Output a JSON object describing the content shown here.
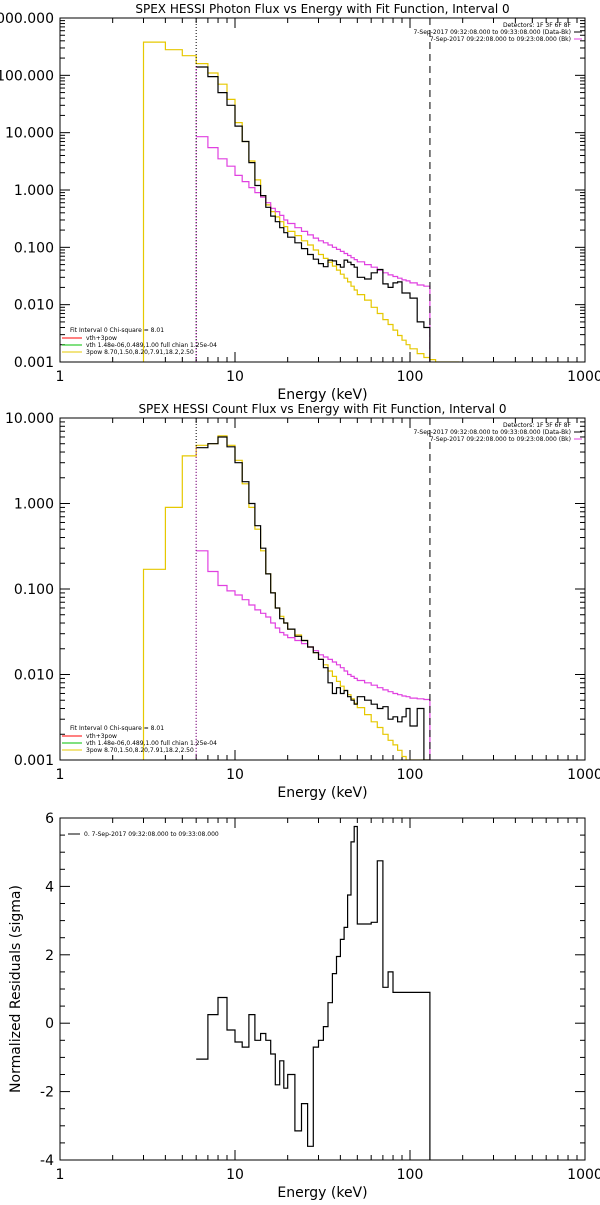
{
  "chart_data": [
    {
      "type": "line",
      "title": "SPEX HESSI Photon Flux vs Energy with Fit Function, Interval 0",
      "xlabel": "Energy (keV)",
      "ylabel": "",
      "xscale": "log",
      "yscale": "log",
      "xlim": [
        1,
        1000
      ],
      "ylim": [
        0.001,
        1000
      ],
      "x_ticks": [
        1,
        10,
        100,
        1000
      ],
      "x_tick_labels": [
        "1",
        "10",
        "100",
        "1000"
      ],
      "y_ticks": [
        0.001,
        0.01,
        0.1,
        1,
        10,
        100,
        1000
      ],
      "y_tick_labels": [
        "0.001",
        "0.010",
        "0.100",
        "1.000",
        "10.000",
        "100.000",
        "1000.000"
      ],
      "vlines": [
        {
          "x": 6,
          "style": "dotted"
        },
        {
          "x": 130,
          "style": "dashed"
        }
      ],
      "info_lines": [
        "Detectors: 1F 3F 6F 8F",
        "7-Sep-2017 09:32:08.000 to 09:33:08.000 (Data-Bk)",
        "7-Sep-2017 09:22:08.000 to 09:23:08.000 (Bk)"
      ],
      "legend_header": "Fit Interval 0   Chi-square = 8.01",
      "legend_entries": [
        {
          "label": "vth+3pow",
          "color": "#ff0000"
        },
        {
          "label": "vth 1.48e-06,0.489,1.00  full chian 1.25e-04",
          "color": "#00c000"
        },
        {
          "label": "3pow 8.70,1.50,8.20,7.91,18.2,2.50",
          "color": "#e6c800"
        }
      ],
      "series": [
        {
          "name": "Data-Bk",
          "color": "#000000",
          "style": "step",
          "edges": [
            6,
            7,
            8,
            9,
            10,
            11,
            12,
            13,
            14,
            15,
            16,
            17,
            18,
            19,
            20,
            22,
            24,
            26,
            28,
            30,
            32,
            34,
            36,
            38,
            40,
            42,
            44,
            46,
            48,
            50,
            55,
            60,
            65,
            70,
            75,
            80,
            85,
            90,
            95,
            100,
            110,
            120,
            130
          ],
          "values": [
            140,
            95,
            50,
            30,
            13,
            7,
            3,
            1.2,
            0.8,
            0.5,
            0.35,
            0.28,
            0.22,
            0.18,
            0.15,
            0.12,
            0.095,
            0.075,
            0.062,
            0.052,
            0.046,
            0.06,
            0.058,
            0.05,
            0.045,
            0.06,
            0.055,
            0.05,
            0.045,
            0.03,
            0.028,
            0.036,
            0.041,
            0.023,
            0.02,
            0.024,
            0.025,
            0.016,
            0.016,
            0.013,
            0.005,
            0.004
          ]
        },
        {
          "name": "Bk",
          "color": "#e040e0",
          "style": "step",
          "edges": [
            6,
            7,
            8,
            9,
            10,
            11,
            12,
            13,
            14,
            15,
            16,
            17,
            18,
            19,
            20,
            22,
            24,
            26,
            28,
            30,
            32,
            34,
            36,
            38,
            40,
            42,
            44,
            46,
            48,
            50,
            55,
            60,
            65,
            70,
            75,
            80,
            85,
            90,
            95,
            100,
            110,
            120,
            130
          ],
          "values": [
            8.5,
            5.5,
            3.5,
            2.6,
            1.8,
            1.4,
            1.1,
            0.9,
            0.75,
            0.6,
            0.48,
            0.42,
            0.36,
            0.3,
            0.26,
            0.22,
            0.19,
            0.165,
            0.145,
            0.13,
            0.12,
            0.11,
            0.1,
            0.092,
            0.085,
            0.078,
            0.072,
            0.066,
            0.061,
            0.056,
            0.05,
            0.045,
            0.04,
            0.036,
            0.033,
            0.031,
            0.029,
            0.027,
            0.026,
            0.024,
            0.022,
            0.021
          ]
        },
        {
          "name": "3pow",
          "color": "#e6c800",
          "style": "step",
          "edges": [
            3,
            4,
            5,
            6,
            7,
            8,
            9,
            10,
            11,
            12,
            13,
            14,
            15,
            16,
            17,
            18,
            19,
            20,
            22,
            24,
            26,
            28,
            30,
            32,
            34,
            36,
            38,
            40,
            42,
            44,
            46,
            48,
            50,
            55,
            60,
            65,
            70,
            75,
            80,
            85,
            90,
            95,
            100,
            110,
            120,
            130,
            140,
            150,
            160,
            170,
            180,
            190
          ],
          "values": [
            380,
            280,
            220,
            160,
            110,
            70,
            38,
            15,
            7,
            3.2,
            1.5,
            0.8,
            0.55,
            0.42,
            0.34,
            0.28,
            0.23,
            0.19,
            0.16,
            0.13,
            0.11,
            0.09,
            0.075,
            0.064,
            0.055,
            0.047,
            0.04,
            0.034,
            0.029,
            0.025,
            0.021,
            0.018,
            0.015,
            0.012,
            0.009,
            0.007,
            0.0055,
            0.0045,
            0.0036,
            0.0029,
            0.0024,
            0.002,
            0.0017,
            0.0014,
            0.0012,
            0.0011,
            0.001,
            0.001,
            0.001,
            0.001,
            0.001
          ],
          "drop_to_floor_at_start": true
        }
      ]
    },
    {
      "type": "line",
      "title": "SPEX HESSI Count Flux vs Energy with Fit Function, Interval 0",
      "xlabel": "Energy (keV)",
      "ylabel": "",
      "xscale": "log",
      "yscale": "log",
      "xlim": [
        1,
        1000
      ],
      "ylim": [
        0.001,
        10
      ],
      "x_ticks": [
        1,
        10,
        100,
        1000
      ],
      "x_tick_labels": [
        "1",
        "10",
        "100",
        "1000"
      ],
      "y_ticks": [
        0.001,
        0.01,
        0.1,
        1,
        10
      ],
      "y_tick_labels": [
        "0.001",
        "0.010",
        "0.100",
        "1.000",
        "10.000"
      ],
      "vlines": [
        {
          "x": 6,
          "style": "dotted"
        },
        {
          "x": 130,
          "style": "dashed"
        }
      ],
      "info_lines": [
        "Detectors: 1F 3F 6F 8F",
        "7-Sep-2017 09:32:08.000 to 09:33:08.000 (Data-Bk)",
        "7-Sep-2017 09:22:08.000 to 09:23:08.000 (Bk)"
      ],
      "legend_header": "Fit Interval 0   Chi-square = 8.01",
      "legend_entries": [
        {
          "label": "vth+3pow",
          "color": "#ff0000"
        },
        {
          "label": "vth 1.48e-06,0.489,1.00  full chian 1.25e-04",
          "color": "#00c000"
        },
        {
          "label": "3pow 8.70,1.50,8.20,7.91,18.2,2.50",
          "color": "#e6c800"
        }
      ],
      "series": [
        {
          "name": "Data-Bk",
          "color": "#000000",
          "style": "step",
          "edges": [
            6,
            7,
            8,
            9,
            10,
            11,
            12,
            13,
            14,
            15,
            16,
            17,
            18,
            19,
            20,
            22,
            24,
            26,
            28,
            30,
            32,
            34,
            36,
            38,
            40,
            42,
            44,
            46,
            48,
            50,
            55,
            60,
            65,
            70,
            75,
            80,
            85,
            90,
            95,
            100,
            110,
            120,
            130
          ],
          "values": [
            4.5,
            5,
            6,
            4.6,
            3,
            1.8,
            1,
            0.55,
            0.3,
            0.15,
            0.09,
            0.06,
            0.045,
            0.04,
            0.034,
            0.028,
            0.025,
            0.021,
            0.018,
            0.015,
            0.012,
            0.008,
            0.006,
            0.007,
            0.006,
            0.0065,
            0.0055,
            0.005,
            0.0045,
            0.0055,
            0.005,
            0.0045,
            0.004,
            0.0042,
            0.003,
            0.0032,
            0.0028,
            0.0032,
            0.004,
            0.0025,
            0.004,
            0.0007
          ]
        },
        {
          "name": "Bk",
          "color": "#e040e0",
          "style": "step",
          "edges": [
            6,
            7,
            8,
            9,
            10,
            11,
            12,
            13,
            14,
            15,
            16,
            17,
            18,
            19,
            20,
            22,
            24,
            26,
            28,
            30,
            32,
            34,
            36,
            38,
            40,
            42,
            44,
            46,
            48,
            50,
            55,
            60,
            65,
            70,
            75,
            80,
            85,
            90,
            95,
            100,
            110,
            120,
            130
          ],
          "values": [
            0.28,
            0.16,
            0.11,
            0.095,
            0.085,
            0.075,
            0.065,
            0.057,
            0.052,
            0.047,
            0.04,
            0.035,
            0.031,
            0.029,
            0.027,
            0.025,
            0.023,
            0.021,
            0.019,
            0.017,
            0.016,
            0.015,
            0.014,
            0.013,
            0.012,
            0.011,
            0.01,
            0.0095,
            0.009,
            0.0085,
            0.008,
            0.0075,
            0.007,
            0.0066,
            0.0063,
            0.006,
            0.0058,
            0.0056,
            0.0055,
            0.0053,
            0.0052,
            0.0051
          ]
        },
        {
          "name": "3pow",
          "color": "#e6c800",
          "style": "step",
          "edges": [
            3,
            4,
            5,
            6,
            7,
            8,
            9,
            10,
            11,
            12,
            13,
            14,
            15,
            16,
            17,
            18,
            19,
            20,
            22,
            24,
            26,
            28,
            30,
            32,
            34,
            36,
            38,
            40,
            42,
            44,
            46,
            48,
            50,
            55,
            60,
            65,
            70,
            75,
            80,
            85,
            90,
            95,
            100,
            110,
            120,
            130
          ],
          "values": [
            0.17,
            0.9,
            3.6,
            4.8,
            5,
            6.2,
            4.8,
            3.2,
            1.7,
            0.9,
            0.5,
            0.28,
            0.15,
            0.09,
            0.06,
            0.048,
            0.04,
            0.034,
            0.029,
            0.025,
            0.021,
            0.018,
            0.015,
            0.013,
            0.011,
            0.0095,
            0.0083,
            0.0073,
            0.0065,
            0.0058,
            0.0052,
            0.0046,
            0.0041,
            0.0034,
            0.0028,
            0.0024,
            0.002,
            0.0017,
            0.0015,
            0.0013,
            0.0011,
            0.001,
            0.001,
            0.001,
            0.001
          ],
          "drop_to_floor_at_start": true
        }
      ]
    },
    {
      "type": "line",
      "title": "",
      "xlabel": "Energy (keV)",
      "ylabel": "Normalized Residuals (sigma)",
      "xscale": "log",
      "yscale": "linear",
      "xlim": [
        1,
        1000
      ],
      "ylim": [
        -4,
        6
      ],
      "x_ticks": [
        1,
        10,
        100,
        1000
      ],
      "x_tick_labels": [
        "1",
        "10",
        "100",
        "1000"
      ],
      "y_ticks": [
        -4,
        -2,
        0,
        2,
        4,
        6
      ],
      "y_tick_labels": [
        "-4",
        "-2",
        "0",
        "2",
        "4",
        "6"
      ],
      "vlines": [],
      "info_lines": [],
      "legend_header": "",
      "legend_entries": [
        {
          "label": "0. 7-Sep-2017 09:32:08.000 to 09:33:08.000",
          "color": "#000000"
        }
      ],
      "series": [
        {
          "name": "0. 7-Sep-2017 09:32:08.000 to 09:33:08.000",
          "color": "#000000",
          "style": "step",
          "edges": [
            6,
            7,
            8,
            9,
            10,
            11,
            12,
            13,
            14,
            15,
            16,
            17,
            18,
            19,
            20,
            22,
            24,
            26,
            28,
            30,
            32,
            34,
            36,
            38,
            40,
            42,
            44,
            46,
            48,
            50,
            55,
            60,
            65,
            70,
            75,
            80,
            85,
            90,
            95,
            100,
            110,
            120,
            130
          ],
          "values": [
            -1.05,
            0.25,
            0.75,
            -0.2,
            -0.55,
            -0.7,
            0.25,
            -0.5,
            -0.3,
            -0.5,
            -0.9,
            -1.8,
            -1.1,
            -1.9,
            -1.5,
            -3.15,
            -2.35,
            -3.6,
            -0.7,
            -0.5,
            -0.1,
            0.6,
            1.45,
            1.95,
            2.45,
            2.8,
            3.75,
            5.3,
            5.75,
            2.9,
            2.9,
            2.95,
            4.75,
            1.05,
            1.5,
            0.9,
            0.9,
            0.9,
            0.9,
            0.9,
            0.9,
            0.9
          ],
          "drop_to_floor_at_start": false
        }
      ]
    }
  ]
}
